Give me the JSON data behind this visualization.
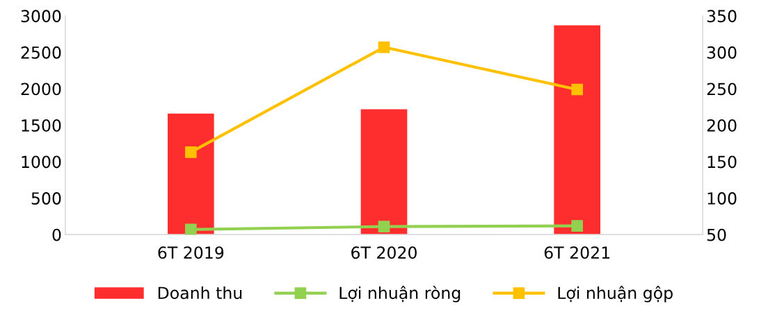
{
  "chart_data": {
    "type": "bar",
    "categories": [
      "6T 2019",
      "6T 2020",
      "6T 2021"
    ],
    "series": [
      {
        "name": "Doanh thu",
        "color": "#ff2e2e",
        "values": [
          1660,
          1720,
          2870
        ]
      },
      {
        "name": "Lợi nhuận ròng",
        "type": "line",
        "axis": "y2",
        "color": "#92d050",
        "values": [
          57,
          61,
          62
        ]
      },
      {
        "name": "Lợi nhuận gộp",
        "type": "line",
        "axis": "y2",
        "color": "#ffc000",
        "values": [
          163,
          307,
          249
        ]
      }
    ],
    "ylim": [
      0,
      3000
    ],
    "yticks": [
      0,
      500,
      1000,
      1500,
      2000,
      2500,
      3000
    ],
    "y2lim": [
      50,
      350
    ],
    "y2ticks": [
      50,
      100,
      150,
      200,
      250,
      300,
      350
    ],
    "marker": "square",
    "line_style": "solid",
    "grid": false,
    "legend": "bottom"
  }
}
